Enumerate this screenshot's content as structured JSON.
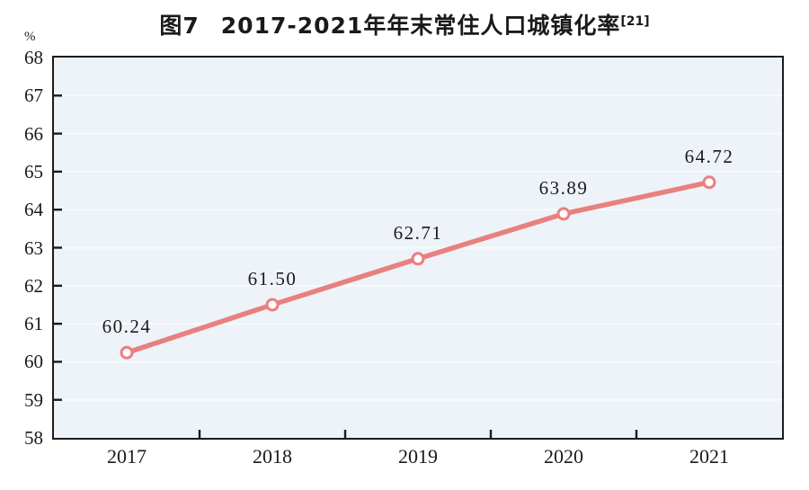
{
  "title": {
    "prefix": "图7",
    "main": "2017-2021年年末常住人口城镇化率",
    "superscript": "[21]"
  },
  "y_axis": {
    "unit_label": "%",
    "tick_labels": [
      "68",
      "67",
      "66",
      "65",
      "64",
      "63",
      "62",
      "61",
      "60",
      "59",
      "58"
    ]
  },
  "chart_data": {
    "type": "line",
    "title": "图7 2017-2021年年末常住人口城镇化率[21]",
    "categories": [
      "2017",
      "2018",
      "2019",
      "2020",
      "2021"
    ],
    "values": [
      60.24,
      61.5,
      62.71,
      63.89,
      64.72
    ],
    "point_labels": [
      "60.24",
      "61.50",
      "62.71",
      "63.89",
      "64.72"
    ],
    "xlabel": "",
    "ylabel": "%",
    "ylim": [
      58,
      68
    ],
    "ytick_step": 1,
    "grid": "horizontal gridlines every 1 unit, light white on pale blue background",
    "legend_position": "none",
    "colors": {
      "line": "#e8807f",
      "marker_fill": "#ffffff",
      "marker_stroke": "#e8807f",
      "plot_background": "#edf3f8",
      "gridline": "#f8fbfd",
      "axis_border": "#1b1b1b",
      "text": "#1a1a1a"
    }
  }
}
